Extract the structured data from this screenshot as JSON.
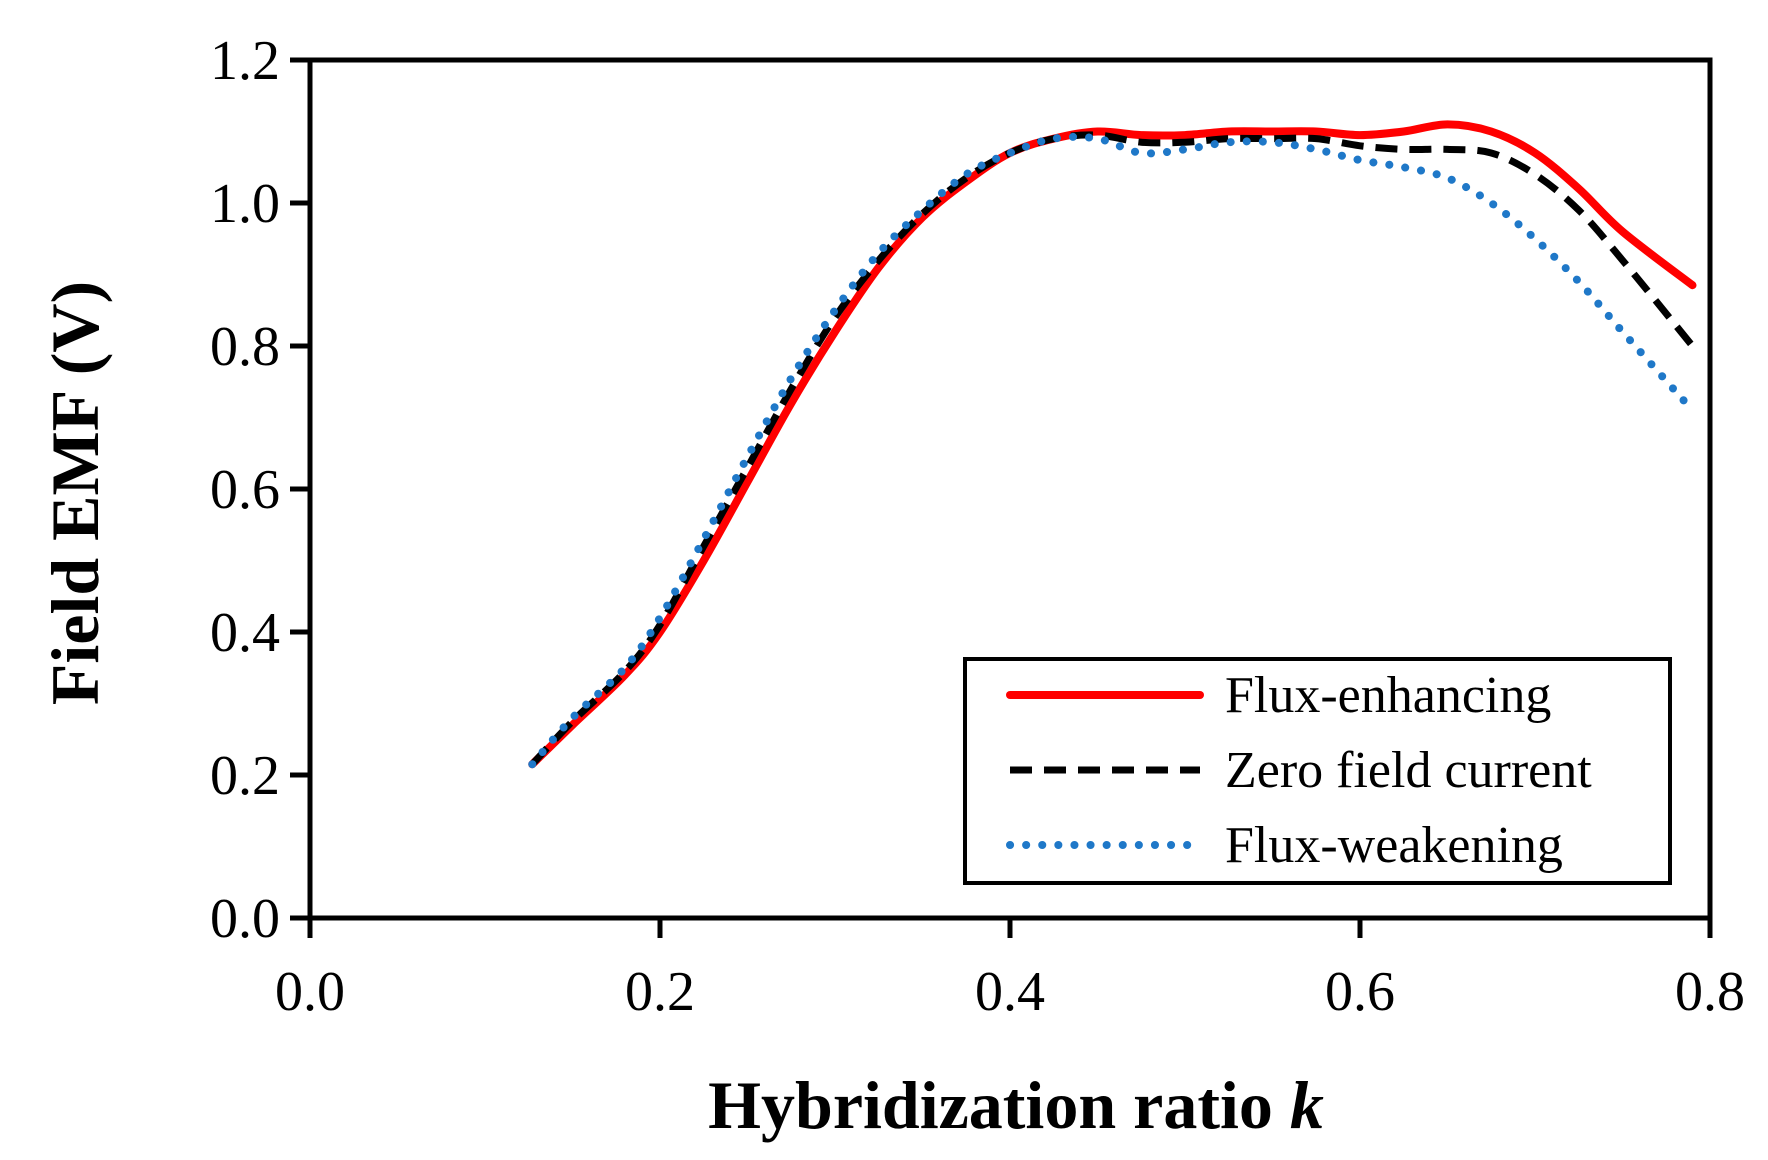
{
  "chart_data": {
    "type": "line",
    "title": "",
    "xlabel": "Hybridization ratio",
    "xlabel_variable": "k",
    "ylabel": "Field EMF (V)",
    "xlim": [
      0.0,
      0.8
    ],
    "ylim": [
      0.0,
      1.2
    ],
    "xticks": [
      "0.0",
      "0.2",
      "0.4",
      "0.6",
      "0.8"
    ],
    "yticks": [
      "0.0",
      "0.2",
      "0.4",
      "0.6",
      "0.8",
      "1.0",
      "1.2"
    ],
    "grid": false,
    "legend_position": "bottom-right",
    "series": [
      {
        "name": "Flux-enhancing",
        "color": "#ff0000",
        "style": "solid",
        "x": [
          0.127,
          0.15,
          0.18,
          0.2,
          0.225,
          0.25,
          0.275,
          0.3,
          0.325,
          0.35,
          0.375,
          0.4,
          0.425,
          0.45,
          0.475,
          0.5,
          0.525,
          0.55,
          0.575,
          0.6,
          0.625,
          0.65,
          0.675,
          0.7,
          0.725,
          0.75,
          0.79
        ],
        "y": [
          0.215,
          0.27,
          0.34,
          0.4,
          0.5,
          0.61,
          0.72,
          0.82,
          0.91,
          0.98,
          1.03,
          1.07,
          1.09,
          1.1,
          1.095,
          1.095,
          1.1,
          1.1,
          1.1,
          1.095,
          1.1,
          1.11,
          1.1,
          1.07,
          1.02,
          0.96,
          0.885
        ]
      },
      {
        "name": "Zero field current",
        "color": "#000000",
        "style": "dashed",
        "x": [
          0.127,
          0.15,
          0.18,
          0.2,
          0.225,
          0.25,
          0.275,
          0.3,
          0.325,
          0.35,
          0.375,
          0.4,
          0.425,
          0.45,
          0.475,
          0.5,
          0.525,
          0.55,
          0.575,
          0.6,
          0.625,
          0.65,
          0.675,
          0.7,
          0.725,
          0.75,
          0.79
        ],
        "y": [
          0.215,
          0.275,
          0.345,
          0.41,
          0.52,
          0.63,
          0.74,
          0.84,
          0.92,
          0.985,
          1.035,
          1.07,
          1.09,
          1.095,
          1.085,
          1.085,
          1.09,
          1.09,
          1.09,
          1.08,
          1.075,
          1.075,
          1.07,
          1.04,
          0.99,
          0.92,
          0.8
        ]
      },
      {
        "name": "Flux-weakening",
        "color": "#1f78c8",
        "style": "dotted",
        "x": [
          0.127,
          0.15,
          0.18,
          0.2,
          0.225,
          0.25,
          0.275,
          0.3,
          0.325,
          0.35,
          0.375,
          0.4,
          0.425,
          0.45,
          0.475,
          0.5,
          0.525,
          0.55,
          0.575,
          0.6,
          0.625,
          0.65,
          0.675,
          0.7,
          0.725,
          0.75,
          0.79
        ],
        "y": [
          0.215,
          0.28,
          0.35,
          0.42,
          0.53,
          0.645,
          0.755,
          0.85,
          0.93,
          0.99,
          1.04,
          1.07,
          1.09,
          1.09,
          1.07,
          1.075,
          1.085,
          1.085,
          1.075,
          1.06,
          1.05,
          1.035,
          1.0,
          0.95,
          0.89,
          0.82,
          0.71
        ]
      }
    ]
  }
}
